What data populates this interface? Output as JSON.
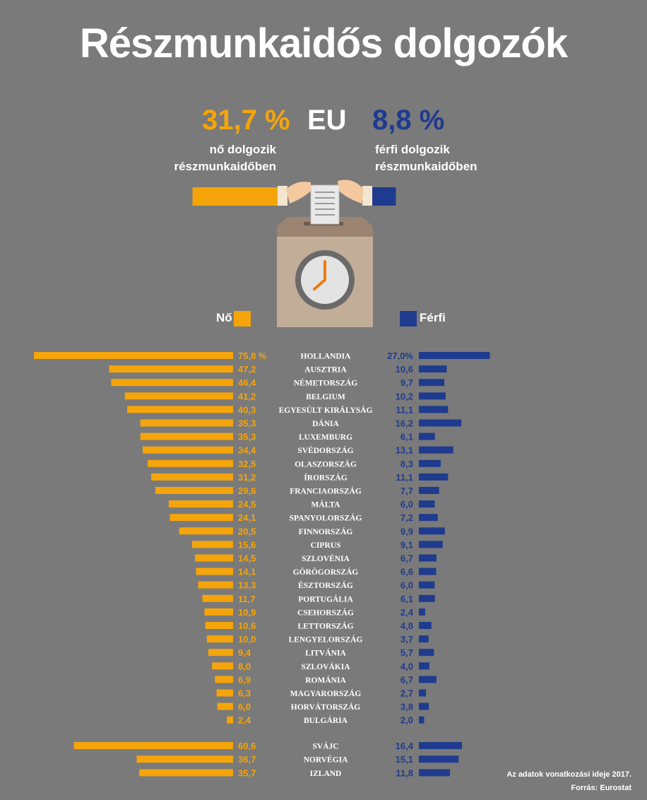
{
  "title": "Részmunkaidős dolgozók",
  "summary": {
    "women_pct": "31,7 %",
    "region": "EU",
    "men_pct": "8,8 %",
    "women_text_1": "nő dolgozik",
    "women_text_2": "részmunkaidőben",
    "men_text_1": "férfi dolgozik",
    "men_text_2": "részmunkaidőben"
  },
  "legend": {
    "women": "Nő",
    "men": "Férfi"
  },
  "colors": {
    "women": "#f5a50a",
    "men": "#1f3b8f",
    "background": "#7a7a7a",
    "box": "#c2ad98",
    "box_top": "#9c8472"
  },
  "illustration": {
    "icons": [
      "ballot-box-icon",
      "clock-icon",
      "ballot-paper-icon",
      "hand-icon"
    ]
  },
  "chart_data": {
    "type": "bar",
    "orientation": "horizontal-butterfly",
    "categories": [
      "HOLLANDIA",
      "AUSZTRIA",
      "NÉMETORSZÁG",
      "BELGIUM",
      "EGYESÜLT KIRÁLYSÁG",
      "DÁNIA",
      "LUXEMBURG",
      "SVÉDORSZÁG",
      "OLASZORSZÁG",
      "ÍRORSZÁG",
      "FRANCIAORSZÁG",
      "MÁLTA",
      "SPANYOLORSZÁG",
      "FINNORSZÁG",
      "CIPRUS",
      "SZLOVÉNIA",
      "GÖRÖGORSZÁG",
      "ÉSZTORSZÁG",
      "PORTUGÁLIA",
      "CSEHORSZÁG",
      "LETTORSZÁG",
      "LENGYELORSZÁG",
      "LITVÁNIA",
      "SZLOVÁKIA",
      "ROMÁNIA",
      "MAGYARORSZÁG",
      "HORVÁTORSZÁG",
      "BULGÁRIA",
      "SVÁJC",
      "NORVÉGIA",
      "IZLAND"
    ],
    "series": [
      {
        "name": "Nő",
        "values": [
          75.8,
          47.2,
          46.4,
          41.2,
          40.3,
          35.3,
          35.3,
          34.4,
          32.5,
          31.2,
          29.6,
          24.5,
          24.1,
          20.5,
          15.6,
          14.5,
          14.1,
          13.3,
          11.7,
          10.9,
          10.6,
          10.0,
          9.4,
          8.0,
          6.9,
          6.3,
          6.0,
          2.4,
          60.6,
          36.7,
          35.7
        ],
        "labels": [
          "75,8 %",
          "47,2",
          "46,4",
          "41,2",
          "40,3",
          "35,3",
          "35,3",
          "34,4",
          "32,5",
          "31,2",
          "29,6",
          "24,5",
          "24,1",
          "20,5",
          "15,6",
          "14,5",
          "14,1",
          "13,3",
          "11,7",
          "10,9",
          "10,6",
          "10,0",
          "9,4",
          "8,0",
          "6,9",
          "6,3",
          "6,0",
          "2,4",
          "60,6",
          "36,7",
          "35,7"
        ]
      },
      {
        "name": "Férfi",
        "values": [
          27.0,
          10.6,
          9.7,
          10.2,
          11.1,
          16.2,
          6.1,
          13.1,
          8.3,
          11.1,
          7.7,
          6.0,
          7.2,
          9.9,
          9.1,
          6.7,
          6.6,
          6.0,
          6.1,
          2.4,
          4.8,
          3.7,
          5.7,
          4.0,
          6.7,
          2.7,
          3.8,
          2.0,
          16.4,
          15.1,
          11.8
        ],
        "labels": [
          "27,0%",
          "10,6",
          "9,7",
          "10,2",
          "11,1",
          "16,2",
          "6,1",
          "13,1",
          "8,3",
          "11,1",
          "7,7",
          "6,0",
          "7,2",
          "9,9",
          "9,1",
          "6,7",
          "6,6",
          "6,0",
          "6,1",
          "2,4",
          "4,8",
          "3,7",
          "5,7",
          "4,0",
          "6,7",
          "2,7",
          "3,8",
          "2,0",
          "16,4",
          "15,1",
          "11,8"
        ]
      }
    ],
    "summary_bars": {
      "women": 31.7,
      "men": 8.8
    }
  },
  "notes": {
    "period": "Az adatok vonatkozási ideje 2017.",
    "source": "Forrás: Eurostat"
  }
}
